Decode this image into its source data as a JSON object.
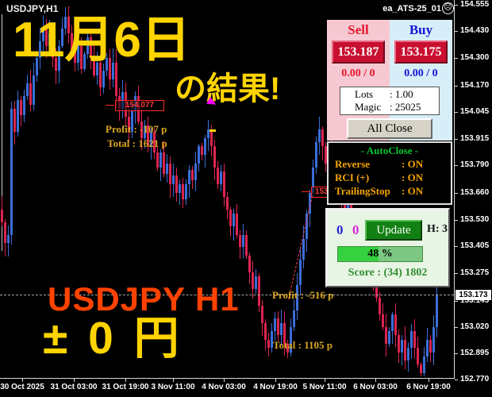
{
  "window": {
    "symbol": "USDJPY,H1",
    "ea_name": "ea_ATS-25_01",
    "smiley_icon": "☹"
  },
  "overlay": {
    "headline1": "11月6日",
    "headline2": "の結果!",
    "symbol_big": "USDJPY H1",
    "result_big": "± 0 円"
  },
  "chart_annotations": {
    "profit1": "Profit : -107 p",
    "total1": "Total : 1621 p",
    "profit2": "Profit : -516 p",
    "total2": "Total : 1105 p",
    "order_label_1": "154.077",
    "order_label_2": "153.672"
  },
  "trade_panel": {
    "sell_label": "Sell",
    "buy_label": "Buy",
    "sell_price": "153.187",
    "buy_price": "153.175",
    "sell_ratio": "0.00 / 0",
    "buy_ratio": "0.00 / 0",
    "lots_label": "Lots",
    "lots_value": ": 1.00",
    "magic_label": "Magic",
    "magic_value": ": 25025",
    "all_close_label": "All Close"
  },
  "autoclose_panel": {
    "title": "- AutoClose -",
    "rows": [
      {
        "label": "Reverse",
        "value": ": ON"
      },
      {
        "label": "RCI (+)",
        "value": ": ON"
      },
      {
        "label": "TrailingStop",
        "value": ": ON"
      }
    ]
  },
  "update_panel": {
    "counter_blue": "0",
    "counter_magenta": "0",
    "update_label": "Update",
    "h_label": "H: 3",
    "progress_text": "48 %",
    "progress_pct": 48,
    "score_text": "Score : (34) 1802"
  },
  "axes": {
    "price_ticks": [
      "154.555",
      "154.430",
      "154.300",
      "154.170",
      "154.045",
      "153.915",
      "153.790",
      "153.660",
      "153.530",
      "153.405",
      "153.275",
      "153.145",
      "153.020",
      "152.895",
      "152.770"
    ],
    "current_price": "153.173",
    "time_ticks": [
      "30 Oct 2025",
      "31 Oct 03:00",
      "31 Oct 19:00",
      "3 Nov 11:00",
      "4 Nov 03:00",
      "4 Nov 19:00",
      "5 Nov 11:00",
      "6 Nov 03:00",
      "6 Nov 19:00"
    ]
  },
  "chart_data": {
    "type": "candlestick",
    "symbol": "USDJPY",
    "timeframe": "H1",
    "title": "USDJPY H1 candlestick chart, 30 Oct 2025 - 6 Nov 2025",
    "price_min": 152.77,
    "price_max": 154.555,
    "current_price": 153.173,
    "order_line_prices": [
      154.077,
      153.672
    ],
    "up_color": "#3b6ed8",
    "down_color": "#dc2450",
    "first_open": 153.58,
    "closes": [
      153.52,
      153.42,
      153.46,
      154.06,
      153.95,
      154.1,
      154.03,
      154.12,
      154.18,
      154.08,
      154.22,
      154.3,
      154.38,
      154.45,
      154.36,
      154.42,
      154.3,
      154.24,
      154.36,
      154.44,
      154.5,
      154.42,
      154.34,
      154.28,
      154.36,
      154.25,
      154.32,
      154.4,
      154.3,
      154.22,
      154.28,
      154.16,
      154.24,
      154.3,
      154.2,
      154.28,
      154.12,
      154.06,
      154.14,
      154.02,
      153.95,
      154.05,
      154.12,
      154.0,
      153.92,
      153.98,
      153.88,
      153.95,
      153.85,
      153.78,
      153.85,
      153.75,
      153.8,
      153.7,
      153.74,
      153.66,
      153.7,
      153.63,
      153.7,
      153.77,
      153.72,
      153.8,
      153.88,
      153.84,
      153.92,
      153.96,
      153.88,
      153.78,
      153.7,
      153.76,
      153.64,
      153.58,
      153.5,
      153.56,
      153.46,
      153.4,
      153.46,
      153.36,
      153.28,
      153.2,
      153.26,
      153.12,
      153.04,
      152.96,
      152.92,
      153.0,
      153.06,
      152.98,
      153.04,
      152.94,
      152.9,
      153.02,
      153.1,
      153.22,
      153.34,
      153.44,
      153.56,
      153.66,
      153.78,
      153.9,
      153.96,
      153.88,
      153.8,
      153.86,
      153.74,
      153.68,
      153.74,
      153.62,
      153.56,
      153.62,
      153.5,
      153.44,
      153.5,
      153.4,
      153.34,
      153.28,
      153.34,
      153.22,
      153.16,
      153.08,
      153.02,
      152.94,
      153.0,
      153.08,
      152.98,
      152.9,
      152.96,
      152.86,
      152.92,
      153.0,
      152.92,
      152.84,
      152.8,
      152.88,
      152.96,
      152.9,
      153.02,
      153.17
    ]
  }
}
